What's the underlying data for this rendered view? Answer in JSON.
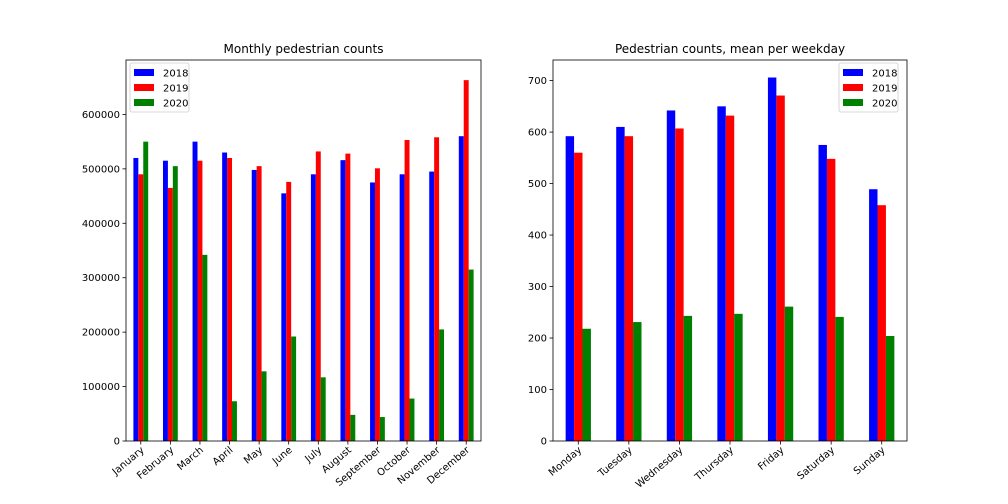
{
  "colors": {
    "2018": "#0000ff",
    "2019": "#ff0000",
    "2020": "#008000"
  },
  "chart_data": [
    {
      "type": "bar",
      "title": "Monthly pedestrian counts",
      "xlabel": "",
      "ylabel": "",
      "ylim": [
        0,
        700000
      ],
      "yticks": [
        0,
        100000,
        200000,
        300000,
        400000,
        500000,
        600000
      ],
      "grid": false,
      "legend_position": "top-left",
      "categories": [
        "January",
        "February",
        "March",
        "April",
        "May",
        "June",
        "July",
        "August",
        "September",
        "October",
        "November",
        "December"
      ],
      "series": [
        {
          "name": "2018",
          "values": [
            520000,
            515000,
            550000,
            530000,
            498000,
            455000,
            490000,
            516000,
            475000,
            490000,
            495000,
            560000
          ]
        },
        {
          "name": "2019",
          "values": [
            490000,
            465000,
            515000,
            520000,
            505000,
            476000,
            532000,
            528000,
            501000,
            553000,
            558000,
            663000
          ]
        },
        {
          "name": "2020",
          "values": [
            550000,
            505000,
            342000,
            73000,
            128000,
            192000,
            117000,
            48000,
            44000,
            78000,
            205000,
            315000
          ]
        }
      ]
    },
    {
      "type": "bar",
      "title": "Pedestrian counts, mean per weekday",
      "xlabel": "",
      "ylabel": "",
      "ylim": [
        0,
        740
      ],
      "yticks": [
        0,
        100,
        200,
        300,
        400,
        500,
        600,
        700
      ],
      "grid": false,
      "legend_position": "top-right",
      "categories": [
        "Monday",
        "Tuesday",
        "Wednesday",
        "Thursday",
        "Friday",
        "Saturday",
        "Sunday"
      ],
      "series": [
        {
          "name": "2018",
          "values": [
            592,
            610,
            642,
            650,
            706,
            575,
            489
          ]
        },
        {
          "name": "2019",
          "values": [
            560,
            592,
            607,
            632,
            671,
            548,
            458
          ]
        },
        {
          "name": "2020",
          "values": [
            218,
            231,
            243,
            247,
            261,
            241,
            204
          ]
        }
      ]
    }
  ]
}
